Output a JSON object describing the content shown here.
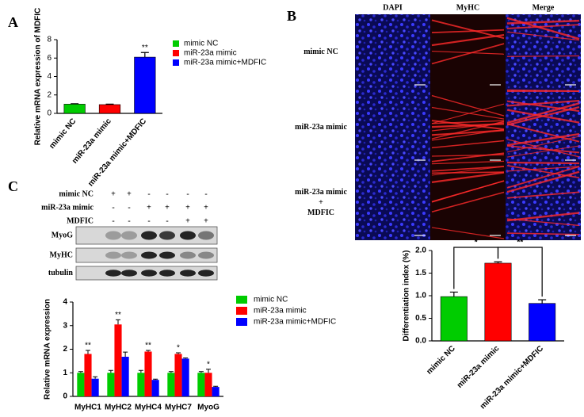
{
  "panel_labels": [
    "A",
    "B",
    "C"
  ],
  "chart_data": [
    {
      "type": "bar",
      "ylabel": "Relative mRNA expression of MDFIC",
      "categories": [
        "mimic NC",
        "miR-23a mimic",
        "miR-23a mimic+MDFIC"
      ],
      "values": [
        1.0,
        0.95,
        6.1
      ],
      "errors": [
        0.05,
        0.05,
        0.5
      ],
      "colors": [
        "#00cc00",
        "#ff0000",
        "#0000ff"
      ],
      "annotations": [
        null,
        null,
        "**"
      ],
      "ylim": [
        0,
        8
      ],
      "yticks": [
        0,
        2,
        4,
        6,
        8
      ],
      "legend": true
    },
    {
      "type": "bar",
      "ylabel": "Differentiation index (%)",
      "categories": [
        "mimic NC",
        "miR-23a mimic",
        "miR-23a mimic+MDFIC"
      ],
      "values": [
        0.98,
        1.72,
        0.83
      ],
      "errors": [
        0.1,
        0.03,
        0.08
      ],
      "colors": [
        "#00cc00",
        "#ff0000",
        "#0000ff"
      ],
      "comparisons": [
        {
          "pair": [
            0,
            1
          ],
          "label": "*"
        },
        {
          "pair": [
            1,
            2
          ],
          "label": "**"
        }
      ],
      "ylim": [
        0,
        2
      ],
      "yticks": [
        {
          "value": 0,
          "label": "0.0"
        },
        {
          "value": 0.5,
          "label": "0.5"
        },
        {
          "value": 1,
          "label": "1.0"
        },
        {
          "value": 1.5,
          "label": "1.5"
        },
        {
          "value": 2,
          "label": "2.0"
        }
      ],
      "legend": false
    },
    {
      "type": "grouped_bar",
      "ylabel": "Relative mRNA expression",
      "categories": [
        "MyHC1",
        "MyHC2",
        "MyHC4",
        "MyHC7",
        "MyoG"
      ],
      "series": [
        {
          "name": "mimic NC",
          "color": "#00cc00",
          "values": [
            1.0,
            1.0,
            1.0,
            1.0,
            1.0
          ],
          "errors": [
            0.05,
            0.1,
            0.1,
            0.05,
            0.05
          ]
        },
        {
          "name": "miR-23a mimic",
          "color": "#ff0000",
          "values": [
            1.8,
            3.05,
            1.9,
            1.8,
            1.0
          ],
          "errors": [
            0.15,
            0.2,
            0.05,
            0.05,
            0.15
          ]
        },
        {
          "name": "miR-23a mimic+MDFIC",
          "color": "#0000ff",
          "values": [
            0.75,
            1.68,
            0.7,
            1.6,
            0.4
          ],
          "errors": [
            0.08,
            0.2,
            0.03,
            0.03,
            0.03
          ]
        }
      ],
      "annotations": [
        "**",
        "**",
        "**",
        "*",
        "*"
      ],
      "ylim": [
        0,
        4
      ],
      "yticks": [
        0,
        1,
        2,
        3,
        4
      ],
      "legend": true
    }
  ],
  "microscopy": {
    "columns": [
      "DAPI",
      "MyHC",
      "Merge"
    ],
    "rows": [
      [
        "mimic NC"
      ],
      [
        "miR-23a mimic"
      ],
      [
        "miR-23a mimic",
        "+",
        "MDFIC"
      ]
    ]
  },
  "western": {
    "conditions": [
      {
        "label": "mimic NC",
        "marks": [
          "+",
          "+",
          "-",
          "-",
          "-",
          "-"
        ]
      },
      {
        "label": "miR-23a mimic",
        "marks": [
          "-",
          "-",
          "+",
          "+",
          "+",
          "+"
        ]
      },
      {
        "label": "MDFIC",
        "marks": [
          "-",
          "-",
          "-",
          "-",
          "+",
          "+"
        ]
      }
    ],
    "bands": [
      "MyoG",
      "MyHC",
      "tubulin"
    ]
  }
}
